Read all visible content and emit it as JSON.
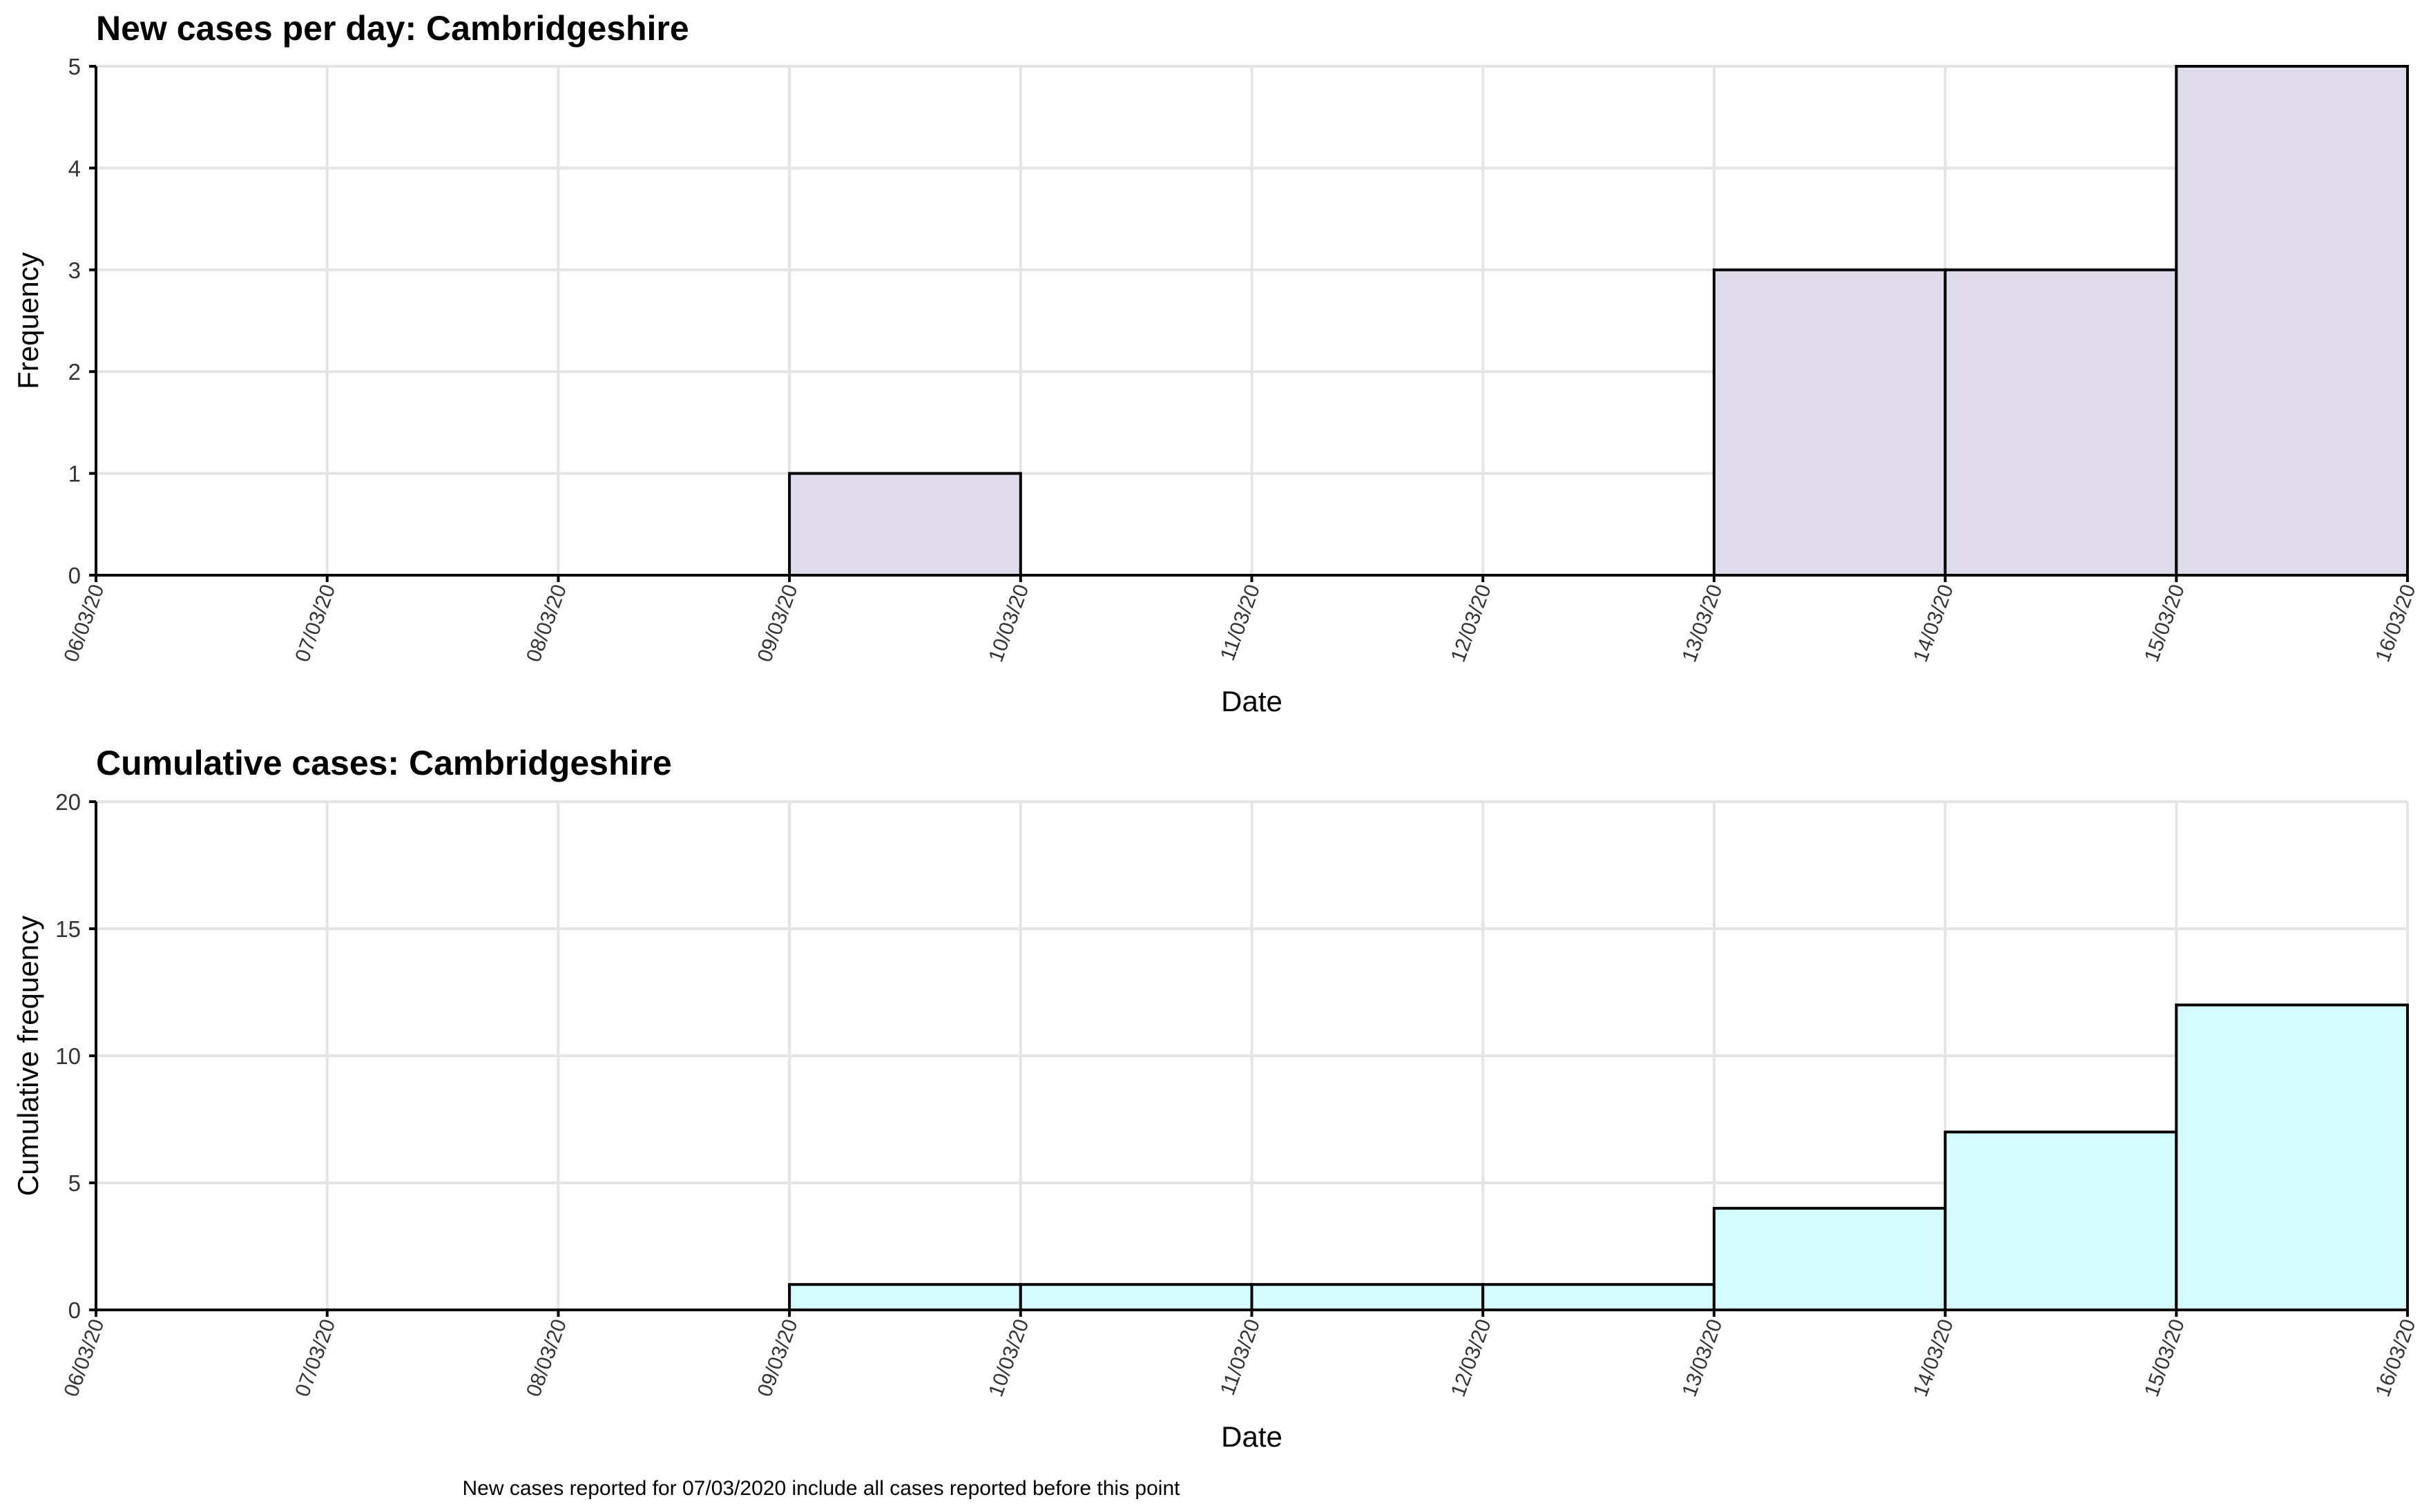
{
  "caption": "New cases reported for 07/03/2020 include all cases reported before this point",
  "chart_data": [
    {
      "type": "bar",
      "title": "New cases per day: Cambridgeshire",
      "xlabel": "Date",
      "ylabel": "Frequency",
      "x_tick_labels": [
        "06/03/20",
        "07/03/20",
        "08/03/20",
        "09/03/20",
        "10/03/20",
        "11/03/20",
        "12/03/20",
        "13/03/20",
        "14/03/20",
        "15/03/20",
        "16/03/20"
      ],
      "categories": [
        "06/03/20",
        "07/03/20",
        "08/03/20",
        "09/03/20",
        "10/03/20",
        "11/03/20",
        "12/03/20",
        "13/03/20",
        "14/03/20",
        "15/03/20"
      ],
      "values": [
        0,
        0,
        0,
        1,
        0,
        0,
        0,
        3,
        3,
        5
      ],
      "ylim": [
        0,
        5
      ],
      "yticks": [
        0,
        1,
        2,
        3,
        4,
        5
      ],
      "bar_color": "#e0dbea",
      "grid": true
    },
    {
      "type": "bar",
      "title": "Cumulative cases: Cambridgeshire",
      "xlabel": "Date",
      "ylabel": "Cumulative frequency",
      "x_tick_labels": [
        "06/03/20",
        "07/03/20",
        "08/03/20",
        "09/03/20",
        "10/03/20",
        "11/03/20",
        "12/03/20",
        "13/03/20",
        "14/03/20",
        "15/03/20",
        "16/03/20"
      ],
      "categories": [
        "06/03/20",
        "07/03/20",
        "08/03/20",
        "09/03/20",
        "10/03/20",
        "11/03/20",
        "12/03/20",
        "13/03/20",
        "14/03/20",
        "15/03/20"
      ],
      "values": [
        0,
        0,
        0,
        1,
        1,
        1,
        1,
        4,
        7,
        12
      ],
      "ylim": [
        0,
        20
      ],
      "yticks": [
        0,
        5,
        10,
        15,
        20
      ],
      "bar_color": "#d4fbfd",
      "grid": true
    }
  ]
}
